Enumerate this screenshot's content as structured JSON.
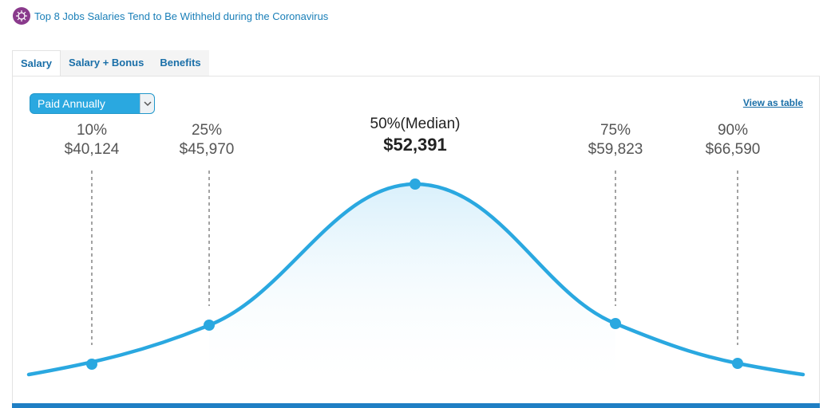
{
  "news": {
    "link_text": "Top 8 Jobs Salaries Tend to Be Withheld during the Coronavirus",
    "icon": "coronavirus-icon"
  },
  "tabs": [
    {
      "label": "Salary",
      "active": true
    },
    {
      "label": "Salary + Bonus",
      "active": false
    },
    {
      "label": "Benefits",
      "active": false
    }
  ],
  "pay_period": {
    "selected": "Paid Annually",
    "icon": "chevron-down-icon"
  },
  "view_table_label": "View as table",
  "percentiles": [
    {
      "label": "10%",
      "value": "$40,124"
    },
    {
      "label": "25%",
      "value": "$45,970"
    },
    {
      "label": "50%(Median)",
      "value": "$52,391"
    },
    {
      "label": "75%",
      "value": "$59,823"
    },
    {
      "label": "90%",
      "value": "$66,590"
    }
  ],
  "colors": {
    "accent": "#2aa8e0",
    "link": "#1a6fa8",
    "bottom_bar": "#1f7fc4",
    "news_icon": "#8a3a8c"
  }
}
